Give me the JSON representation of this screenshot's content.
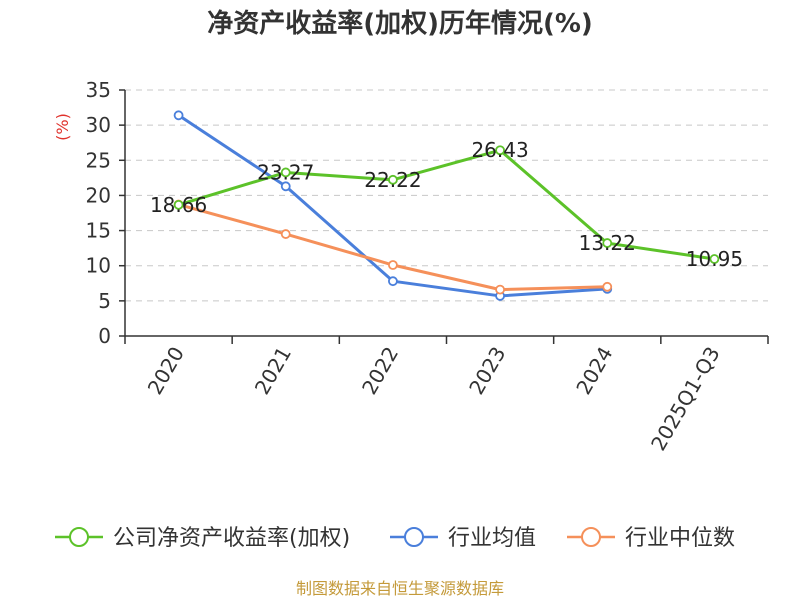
{
  "chart_data": {
    "type": "line",
    "title": "净资产收益率(加权)历年情况(%)",
    "ylabel": "(%)",
    "xlabel": "",
    "categories": [
      "2020",
      "2021",
      "2022",
      "2023",
      "2024",
      "2025Q1-Q3"
    ],
    "ylim": [
      0,
      35
    ],
    "yticks": [
      0,
      5,
      10,
      15,
      20,
      25,
      30,
      35
    ],
    "grid": true,
    "legend_position": "bottom",
    "series": [
      {
        "name": "公司净资产收益率(加权)",
        "color": "#5cc229",
        "values": [
          18.66,
          23.27,
          22.22,
          26.43,
          13.22,
          10.95
        ],
        "labels": [
          "18.66",
          "23.27",
          "22.22",
          "26.43",
          "13.22",
          "10.95"
        ]
      },
      {
        "name": "行业均值",
        "color": "#4a7fdb",
        "values": [
          31.4,
          21.3,
          7.8,
          5.7,
          6.7,
          null
        ]
      },
      {
        "name": "行业中位数",
        "color": "#f5905a",
        "values": [
          18.7,
          14.5,
          10.1,
          6.6,
          7.0,
          null
        ]
      }
    ],
    "source": "制图数据来自恒生聚源数据库",
    "ylabel_color": "#e0322c",
    "source_color": "#c49a3a"
  }
}
